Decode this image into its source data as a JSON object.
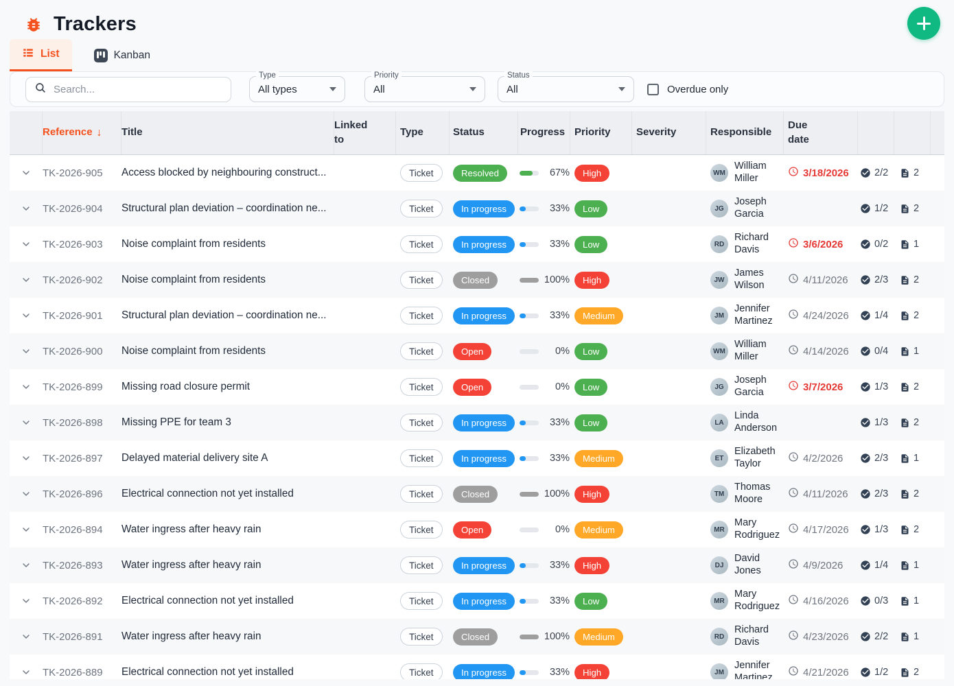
{
  "app": {
    "title": "Trackers"
  },
  "icons": {
    "logo": "bug",
    "add": "plus",
    "tab_list": "list",
    "tab_kanban": "kanban-board",
    "search": "magnifier",
    "sort": "arrow-down",
    "row_expand": "chevron-down",
    "due": "clock",
    "checks": "check-circle",
    "docs": "document"
  },
  "tabs": [
    {
      "label": "List",
      "active": true
    },
    {
      "label": "Kanban",
      "active": false
    }
  ],
  "filters": {
    "search_placeholder": "Search...",
    "type": {
      "label": "Type",
      "value": "All types"
    },
    "priority": {
      "label": "Priority",
      "value": "All"
    },
    "status": {
      "label": "Status",
      "value": "All"
    },
    "overdue": {
      "label": "Overdue only",
      "checked": false
    }
  },
  "table": {
    "columns": [
      "Reference",
      "Title",
      "Linked to",
      "Type",
      "Status",
      "Progress",
      "Priority",
      "Severity",
      "Responsible",
      "Due date"
    ],
    "sorted_by": "Reference",
    "sort_arrow": "↓",
    "rows": [
      {
        "reference": "TK-2026-905",
        "title": "Access blocked by neighbouring construct...",
        "linked_to": "",
        "type": "Ticket",
        "status": "Resolved",
        "progress": 67,
        "priority": "High",
        "severity": "",
        "responsible": "William Miller",
        "due": "3/18/2026",
        "overdue": true,
        "checks": "2/2",
        "docs": "2"
      },
      {
        "reference": "TK-2026-904",
        "title": "Structural plan deviation – coordination ne...",
        "linked_to": "",
        "type": "Ticket",
        "status": "In progress",
        "progress": 33,
        "priority": "Low",
        "severity": "",
        "responsible": "Joseph Garcia",
        "due": null,
        "overdue": false,
        "checks": "1/2",
        "docs": "2"
      },
      {
        "reference": "TK-2026-903",
        "title": "Noise complaint from residents",
        "linked_to": "",
        "type": "Ticket",
        "status": "In progress",
        "progress": 33,
        "priority": "Low",
        "severity": "",
        "responsible": "Richard Davis",
        "due": "3/6/2026",
        "overdue": true,
        "checks": "0/2",
        "docs": "1"
      },
      {
        "reference": "TK-2026-902",
        "title": "Noise complaint from residents",
        "linked_to": "",
        "type": "Ticket",
        "status": "Closed",
        "progress": 100,
        "priority": "High",
        "severity": "",
        "responsible": "James Wilson",
        "due": "4/11/2026",
        "overdue": false,
        "checks": "2/3",
        "docs": "2"
      },
      {
        "reference": "TK-2026-901",
        "title": "Structural plan deviation – coordination ne...",
        "linked_to": "",
        "type": "Ticket",
        "status": "In progress",
        "progress": 33,
        "priority": "Medium",
        "severity": "",
        "responsible": "Jennifer Martinez",
        "due": "4/24/2026",
        "overdue": false,
        "checks": "1/4",
        "docs": "2"
      },
      {
        "reference": "TK-2026-900",
        "title": "Noise complaint from residents",
        "linked_to": "",
        "type": "Ticket",
        "status": "Open",
        "progress": 0,
        "priority": "Low",
        "severity": "",
        "responsible": "William Miller",
        "due": "4/14/2026",
        "overdue": false,
        "checks": "0/4",
        "docs": "1"
      },
      {
        "reference": "TK-2026-899",
        "title": "Missing road closure permit",
        "linked_to": "",
        "type": "Ticket",
        "status": "Open",
        "progress": 0,
        "priority": "Low",
        "severity": "",
        "responsible": "Joseph Garcia",
        "due": "3/7/2026",
        "overdue": true,
        "checks": "1/3",
        "docs": "2"
      },
      {
        "reference": "TK-2026-898",
        "title": "Missing PPE for team 3",
        "linked_to": "",
        "type": "Ticket",
        "status": "In progress",
        "progress": 33,
        "priority": "Low",
        "severity": "",
        "responsible": "Linda Anderson",
        "due": null,
        "overdue": false,
        "checks": "1/3",
        "docs": "2"
      },
      {
        "reference": "TK-2026-897",
        "title": "Delayed material delivery site A",
        "linked_to": "",
        "type": "Ticket",
        "status": "In progress",
        "progress": 33,
        "priority": "Medium",
        "severity": "",
        "responsible": "Elizabeth Taylor",
        "due": "4/2/2026",
        "overdue": false,
        "checks": "2/3",
        "docs": "1"
      },
      {
        "reference": "TK-2026-896",
        "title": "Electrical connection not yet installed",
        "linked_to": "",
        "type": "Ticket",
        "status": "Closed",
        "progress": 100,
        "priority": "High",
        "severity": "",
        "responsible": "Thomas Moore",
        "due": "4/11/2026",
        "overdue": false,
        "checks": "2/3",
        "docs": "2"
      },
      {
        "reference": "TK-2026-894",
        "title": "Water ingress after heavy rain",
        "linked_to": "",
        "type": "Ticket",
        "status": "Open",
        "progress": 0,
        "priority": "Medium",
        "severity": "",
        "responsible": "Mary Rodriguez",
        "due": "4/17/2026",
        "overdue": false,
        "checks": "1/3",
        "docs": "2"
      },
      {
        "reference": "TK-2026-893",
        "title": "Water ingress after heavy rain",
        "linked_to": "",
        "type": "Ticket",
        "status": "In progress",
        "progress": 33,
        "priority": "High",
        "severity": "",
        "responsible": "David Jones",
        "due": "4/9/2026",
        "overdue": false,
        "checks": "1/4",
        "docs": "1"
      },
      {
        "reference": "TK-2026-892",
        "title": "Electrical connection not yet installed",
        "linked_to": "",
        "type": "Ticket",
        "status": "In progress",
        "progress": 33,
        "priority": "Low",
        "severity": "",
        "responsible": "Mary Rodriguez",
        "due": "4/16/2026",
        "overdue": false,
        "checks": "0/3",
        "docs": "1"
      },
      {
        "reference": "TK-2026-891",
        "title": "Water ingress after heavy rain",
        "linked_to": "",
        "type": "Ticket",
        "status": "Closed",
        "progress": 100,
        "priority": "Medium",
        "severity": "",
        "responsible": "Richard Davis",
        "due": "4/23/2026",
        "overdue": false,
        "checks": "2/2",
        "docs": "1"
      },
      {
        "reference": "TK-2026-889",
        "title": "Electrical connection not yet installed",
        "linked_to": "",
        "type": "Ticket",
        "status": "In progress",
        "progress": 33,
        "priority": "High",
        "severity": "",
        "responsible": "Jennifer Martinez",
        "due": "4/21/2026",
        "overdue": false,
        "checks": "1/2",
        "docs": "2"
      }
    ]
  },
  "colors": {
    "accent_orange": "#f4511e",
    "fab_green": "#10b981",
    "overdue_red": "#e53935",
    "status": {
      "Resolved": "#4caf50",
      "In progress": "#2196f3",
      "Open": "#f44336",
      "Closed": "#9e9e9e"
    },
    "priority": {
      "Low": "#4caf50",
      "Medium": "#ffa726",
      "High": "#f44336"
    }
  }
}
